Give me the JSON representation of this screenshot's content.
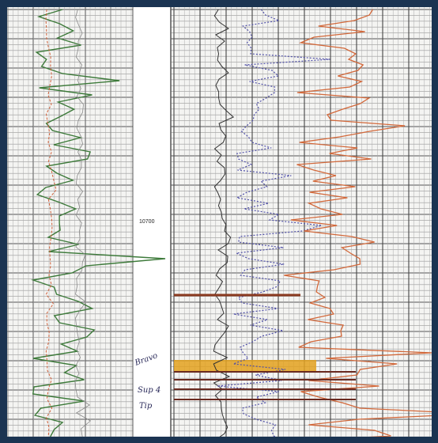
{
  "depth_label": "10700",
  "annotations": [
    "Bravo",
    "Sup 4",
    "Tip"
  ]
}
